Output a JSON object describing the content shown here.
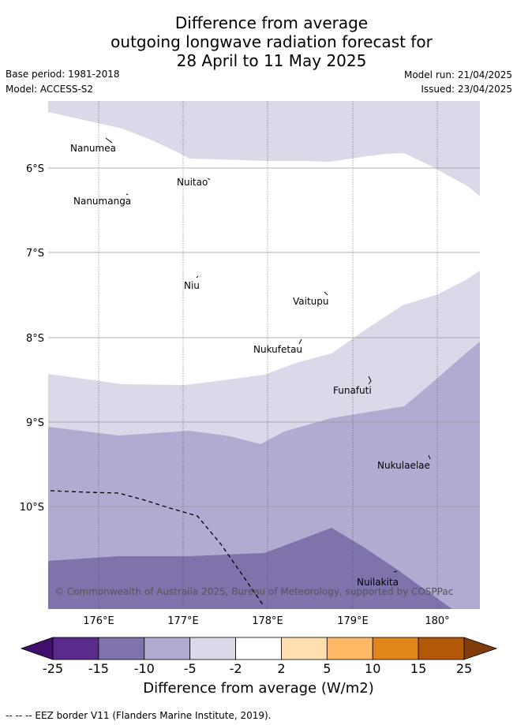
{
  "title": {
    "line1": "Difference from average",
    "line2": "outgoing longwave radiation forecast for",
    "line3": "28 April to 11 May 2025"
  },
  "meta": {
    "base_period": "Base period: 1981-2018",
    "model": "Model: ACCESS-S2",
    "model_run": "Model run: 21/04/2025",
    "issued": "Issued: 23/04/2025"
  },
  "map": {
    "lon_labels": [
      "176°E",
      "177°E",
      "178°E",
      "179°E",
      "180°"
    ],
    "lat_labels": [
      "6°S",
      "7°S",
      "8°S",
      "9°S",
      "10°S"
    ],
    "places": [
      "Nanumea",
      "Nuitao",
      "Nanumanga",
      "Niu",
      "Vaitupu",
      "Nukufetau",
      "Funafuti",
      "Nukulaelae",
      "Nuilakita"
    ],
    "copyright": "© Commonwealth of Australia 2025, Bureau of Meteorology, supported by COSPPac"
  },
  "colorbar": {
    "ticks": [
      "-25",
      "-15",
      "-10",
      "-5",
      "-2",
      "2",
      "5",
      "10",
      "15",
      "25"
    ],
    "colors": [
      "#3f0f6b",
      "#5a2a8c",
      "#8073ab",
      "#b1abd2",
      "#d9d9ea",
      "#ffffff",
      "#ffdeb0",
      "#ffb865",
      "#e2851a",
      "#b35806",
      "#7f3b08"
    ],
    "label": "Difference from average (W/m2)"
  },
  "footer": "--  --  -- EEZ border V11 (Flanders Marine Institute, 2019)."
}
